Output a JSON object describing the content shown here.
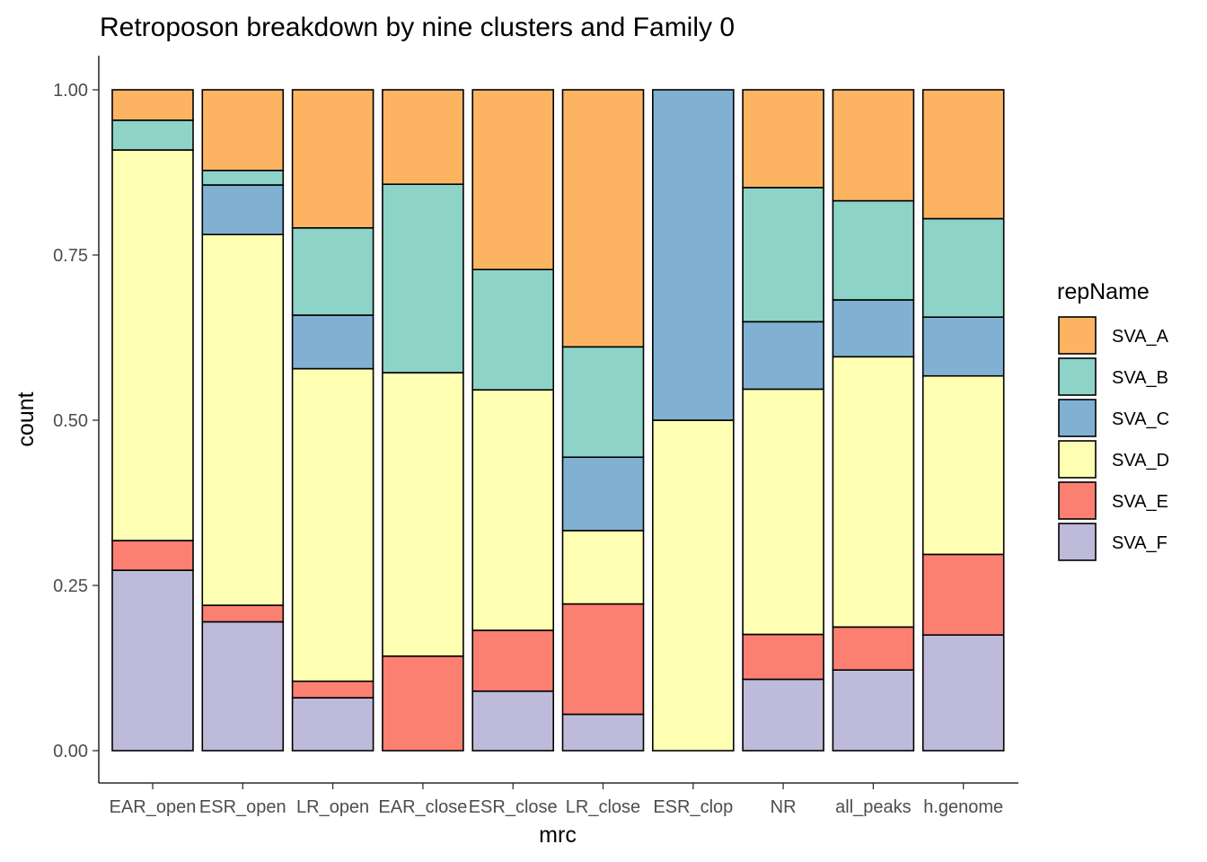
{
  "chart_data": {
    "type": "bar",
    "stacked": true,
    "normalized": true,
    "title": "Retroposon breakdown by nine clusters and Family 0",
    "xlabel": "mrc",
    "ylabel": "count",
    "ylim": [
      0,
      1
    ],
    "yticks": [
      "0.00",
      "0.25",
      "0.50",
      "0.75",
      "1.00"
    ],
    "grid": false,
    "legend_position": "right",
    "legend_title": "repName",
    "categories": [
      "EAR_open",
      "ESR_open",
      "LR_open",
      "EAR_close",
      "ESR_close",
      "LR_close",
      "ESR_clop",
      "NR",
      "all_peaks",
      "h.genome"
    ],
    "series": [
      {
        "name": "SVA_F",
        "color": "#BEBADA",
        "values": [
          0.273,
          0.195,
          0.08,
          0.0,
          0.09,
          0.055,
          0.0,
          0.108,
          0.122,
          0.175
        ]
      },
      {
        "name": "SVA_E",
        "color": "#FB8072",
        "values": [
          0.045,
          0.025,
          0.025,
          0.143,
          0.092,
          0.167,
          0.0,
          0.068,
          0.065,
          0.122
        ]
      },
      {
        "name": "SVA_D",
        "color": "#FFFFB3",
        "values": [
          0.591,
          0.561,
          0.473,
          0.429,
          0.364,
          0.111,
          0.5,
          0.371,
          0.409,
          0.27
        ]
      },
      {
        "name": "SVA_C",
        "color": "#80B1D3",
        "values": [
          0.0,
          0.075,
          0.081,
          0.0,
          0.0,
          0.111,
          0.5,
          0.102,
          0.086,
          0.089
        ]
      },
      {
        "name": "SVA_B",
        "color": "#8DD3C7",
        "values": [
          0.045,
          0.022,
          0.132,
          0.285,
          0.182,
          0.167,
          0.0,
          0.203,
          0.15,
          0.149
        ]
      },
      {
        "name": "SVA_A",
        "color": "#FDB462",
        "values": [
          0.046,
          0.122,
          0.209,
          0.143,
          0.272,
          0.389,
          0.0,
          0.148,
          0.168,
          0.195
        ]
      }
    ],
    "legend_order": [
      "SVA_A",
      "SVA_B",
      "SVA_C",
      "SVA_D",
      "SVA_E",
      "SVA_F"
    ]
  }
}
